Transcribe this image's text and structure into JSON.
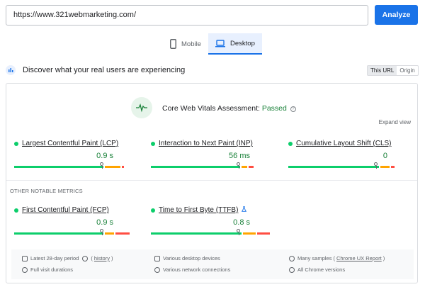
{
  "url_bar": {
    "value": "https://www.321webmarketing.com/",
    "analyze_label": "Analyze"
  },
  "device_tabs": [
    {
      "label": "Mobile",
      "icon": "smartphone-icon",
      "active": false
    },
    {
      "label": "Desktop",
      "icon": "laptop-icon",
      "active": true
    }
  ],
  "discover": {
    "text": "Discover what your real users are experiencing",
    "scope": [
      {
        "label": "This URL",
        "active": true
      },
      {
        "label": "Origin",
        "active": false
      }
    ]
  },
  "assessment": {
    "prefix": "Core Web Vitals Assessment: ",
    "status": "Passed",
    "expand_label": "Expand view"
  },
  "core_metrics": [
    {
      "name": "Largest Contentful Paint (LCP)",
      "value": "0.9 s",
      "marker_fraction": 0.74,
      "good": 0.75,
      "ni": 0.13,
      "poor": 0.02
    },
    {
      "name": "Interaction to Next Paint (INP)",
      "value": "56 ms",
      "marker_fraction": 0.74,
      "good": 0.75,
      "ni": 0.05,
      "poor": 0.04
    },
    {
      "name": "Cumulative Layout Shift (CLS)",
      "value": "0",
      "marker_fraction": 0.74,
      "good": 0.76,
      "ni": 0.08,
      "poor": 0.03
    }
  ],
  "other_heading": "OTHER NOTABLE METRICS",
  "other_metrics": [
    {
      "name": "First Contentful Paint (FCP)",
      "value": "0.9 s",
      "marker_fraction": 0.74,
      "good": 0.75,
      "ni": 0.08,
      "poor": 0.12
    },
    {
      "name": "Time to First Byte (TTFB)",
      "value": "0.8 s",
      "marker_fraction": 0.74,
      "good": 0.76,
      "ni": 0.11,
      "poor": 0.11
    }
  ],
  "info": {
    "period": "Latest 28-day period",
    "history": "history",
    "devices": "Various desktop devices",
    "samples_prefix": "Many samples",
    "samples_link": "Chrome UX Report",
    "visits": "Full visit durations",
    "network": "Various network connections",
    "chrome": "All Chrome versions"
  },
  "colors": {
    "accent": "#1a73e8",
    "good": "#0cce6b",
    "needs_improvement": "#ffa400",
    "poor": "#ff4e42",
    "passed_text": "#188038"
  }
}
